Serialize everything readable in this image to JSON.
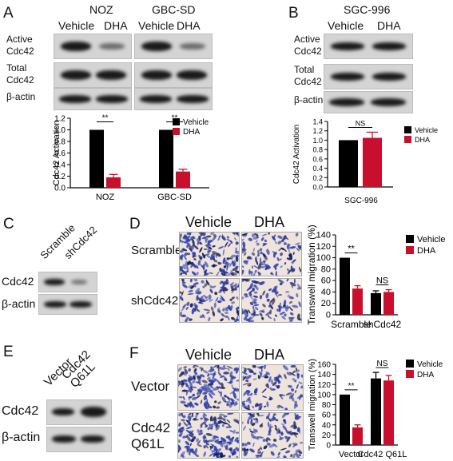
{
  "panels": {
    "A": {
      "label": "A",
      "groups": [
        "NOZ",
        "GBC-SD"
      ],
      "lanes": [
        "Vehicle",
        "DHA",
        "Vehicle",
        "DHA"
      ],
      "rows": [
        "Active\nCdc42",
        "Total\nCdc42",
        "β-actin"
      ],
      "chart": {
        "ylabel": "Cdc42 Activation",
        "ticks": [
          "0.0",
          "0.2",
          "0.4",
          "0.6",
          "0.8",
          "1.0",
          "1.2"
        ],
        "sig": [
          "**",
          "**"
        ]
      }
    },
    "B": {
      "label": "B",
      "group": "SGC-996",
      "lanes": [
        "Vehicle",
        "DHA"
      ],
      "rows": [
        "Active\nCdc42",
        "Total\nCdc42",
        "β-actin"
      ],
      "chart": {
        "ylabel": "Cdc42 Activation",
        "ticks": [
          "0.0",
          "0.2",
          "0.4",
          "0.6",
          "0.8",
          "1.0",
          "1.2",
          "1.4"
        ],
        "sig": [
          "NS"
        ]
      }
    },
    "C": {
      "label": "C",
      "lanes": [
        "Scramble",
        "shCdc42"
      ],
      "rows": [
        "Cdc42",
        "β-actin"
      ]
    },
    "D": {
      "label": "D",
      "cols": [
        "Vehicle",
        "DHA"
      ],
      "rows": [
        "Scramble",
        "shCdc42"
      ],
      "chart": {
        "ylabel": "Transwell migration (%)",
        "ticks": [
          "0",
          "20",
          "40",
          "60",
          "80",
          "100",
          "120",
          "140"
        ],
        "sig": [
          "**",
          "NS"
        ]
      }
    },
    "E": {
      "label": "E",
      "lanes": [
        "Vector",
        "Cdc42\nQ61L"
      ],
      "rows": [
        "Cdc42",
        "β-actin"
      ]
    },
    "F": {
      "label": "F",
      "cols": [
        "Vehicle",
        "DHA"
      ],
      "rows": [
        "Vector",
        "Cdc42\nQ61L"
      ],
      "chart": {
        "ylabel": "Transwell migration (%)",
        "ticks": [
          "0",
          "20",
          "40",
          "60",
          "80",
          "100",
          "120",
          "140",
          "160"
        ],
        "sig": [
          "**",
          "NS"
        ]
      }
    }
  },
  "legend": {
    "vehicle": "Vehicle",
    "dha": "DHA"
  },
  "colors": {
    "vehicle": "#000000",
    "dha": "#c8102e",
    "blot_bg": "#d4d4d4",
    "micro_bg": "#efe4dc",
    "micro_cell": "#2a3fb0"
  },
  "chart_data": [
    {
      "panel": "A",
      "type": "bar",
      "categories": [
        "NOZ",
        "GBC-SD"
      ],
      "series": [
        {
          "name": "Vehicle",
          "values": [
            1.0,
            1.0
          ],
          "errors": [
            0,
            0
          ]
        },
        {
          "name": "DHA",
          "values": [
            0.18,
            0.28
          ],
          "errors": [
            0.05,
            0.04
          ]
        }
      ],
      "title": "",
      "xlabel": "",
      "ylabel": "Cdc42 Activation",
      "ylim": [
        0,
        1.2
      ],
      "yticks": [
        0,
        0.2,
        0.4,
        0.6,
        0.8,
        1.0,
        1.2
      ],
      "annotations": [
        "**",
        "**"
      ],
      "legend": "right"
    },
    {
      "panel": "B",
      "type": "bar",
      "categories": [
        "SGC-996"
      ],
      "series": [
        {
          "name": "Vehicle",
          "values": [
            1.0
          ],
          "errors": [
            0
          ]
        },
        {
          "name": "DHA",
          "values": [
            1.05
          ],
          "errors": [
            0.12
          ]
        }
      ],
      "title": "",
      "xlabel": "SGC-996",
      "ylabel": "Cdc42 Activation",
      "ylim": [
        0,
        1.4
      ],
      "yticks": [
        0,
        0.2,
        0.4,
        0.6,
        0.8,
        1.0,
        1.2,
        1.4
      ],
      "annotations": [
        "NS"
      ],
      "legend": "right"
    },
    {
      "panel": "D",
      "type": "bar",
      "categories": [
        "Scramble",
        "shCdc42"
      ],
      "series": [
        {
          "name": "Vehicle",
          "values": [
            100,
            38
          ],
          "errors": [
            0,
            4
          ]
        },
        {
          "name": "DHA",
          "values": [
            46,
            40
          ],
          "errors": [
            5,
            4
          ]
        }
      ],
      "title": "",
      "xlabel": "",
      "ylabel": "Transwell migration (%)",
      "ylim": [
        0,
        140
      ],
      "yticks": [
        0,
        20,
        40,
        60,
        80,
        100,
        120,
        140
      ],
      "annotations": [
        "**",
        "NS"
      ],
      "legend": "right"
    },
    {
      "panel": "F",
      "type": "bar",
      "categories": [
        "Vector",
        "Cdc42 Q61L"
      ],
      "series": [
        {
          "name": "Vehicle",
          "values": [
            100,
            132
          ],
          "errors": [
            0,
            12
          ]
        },
        {
          "name": "DHA",
          "values": [
            35,
            128
          ],
          "errors": [
            5,
            10
          ]
        }
      ],
      "title": "",
      "xlabel": "",
      "ylabel": "Transwell migration (%)",
      "ylim": [
        0,
        160
      ],
      "yticks": [
        0,
        20,
        40,
        60,
        80,
        100,
        120,
        140,
        160
      ],
      "annotations": [
        "**",
        "NS"
      ],
      "legend": "right"
    }
  ]
}
